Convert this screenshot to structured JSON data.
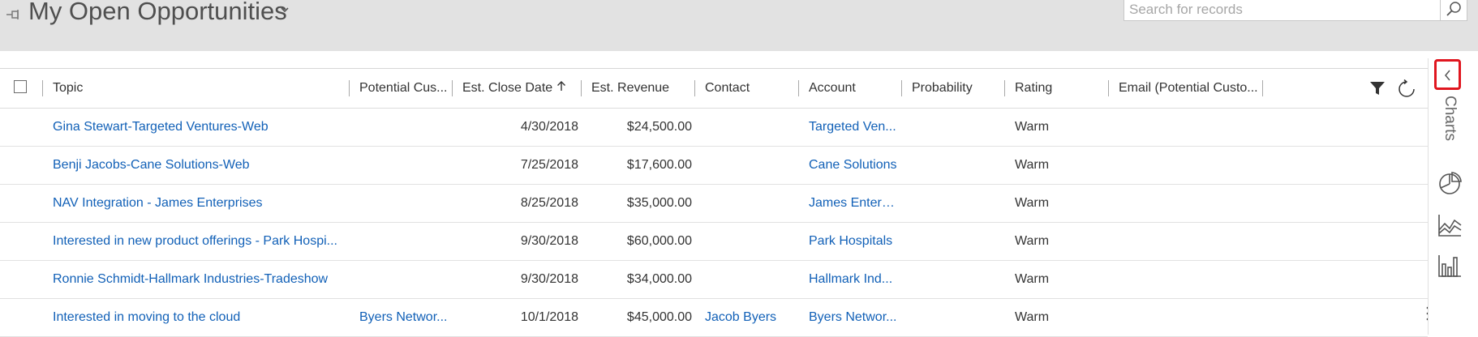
{
  "header": {
    "title": "My Open Opportunities",
    "search_placeholder": "Search for records"
  },
  "grid": {
    "columns": [
      {
        "label": "Topic"
      },
      {
        "label": "Potential Cus..."
      },
      {
        "label": "Est. Close Date"
      },
      {
        "label": "Est. Revenue"
      },
      {
        "label": "Contact"
      },
      {
        "label": "Account"
      },
      {
        "label": "Probability"
      },
      {
        "label": "Rating"
      },
      {
        "label": "Email (Potential Custo..."
      }
    ],
    "sorted_column": "Est. Close Date",
    "sort_direction": "ascending",
    "rows": [
      {
        "topic": "Gina Stewart-Targeted Ventures-Web",
        "potential_customer": "",
        "close_date": "4/30/2018",
        "revenue": "$24,500.00",
        "contact": "",
        "account": "Targeted Ven...",
        "probability": "",
        "rating": "Warm",
        "email": ""
      },
      {
        "topic": "Benji Jacobs-Cane Solutions-Web",
        "potential_customer": "",
        "close_date": "7/25/2018",
        "revenue": "$17,600.00",
        "contact": "",
        "account": "Cane Solutions",
        "probability": "",
        "rating": "Warm",
        "email": ""
      },
      {
        "topic": "NAV Integration - James Enterprises",
        "potential_customer": "",
        "close_date": "8/25/2018",
        "revenue": "$35,000.00",
        "contact": "",
        "account": "James Enterp...",
        "probability": "",
        "rating": "Warm",
        "email": ""
      },
      {
        "topic": "Interested in new product offerings - Park Hospi...",
        "potential_customer": "",
        "close_date": "9/30/2018",
        "revenue": "$60,000.00",
        "contact": "",
        "account": "Park Hospitals",
        "probability": "",
        "rating": "Warm",
        "email": ""
      },
      {
        "topic": "Ronnie Schmidt-Hallmark Industries-Tradeshow",
        "potential_customer": "",
        "close_date": "9/30/2018",
        "revenue": "$34,000.00",
        "contact": "",
        "account": "Hallmark Ind...",
        "probability": "",
        "rating": "Warm",
        "email": ""
      },
      {
        "topic": "Interested in moving to the cloud",
        "potential_customer": "Byers Networ...",
        "close_date": "10/1/2018",
        "revenue": "$45,000.00",
        "contact": "Jacob Byers",
        "account": "Byers Networ...",
        "probability": "",
        "rating": "Warm",
        "email": ""
      }
    ]
  },
  "side_panel": {
    "label": "Charts",
    "buttons": [
      "pie-chart-icon",
      "area-chart-icon",
      "bar-chart-icon"
    ]
  },
  "colors": {
    "link": "#1160b7",
    "header_background": "#e2e2e2",
    "highlight": "#e0161f"
  }
}
